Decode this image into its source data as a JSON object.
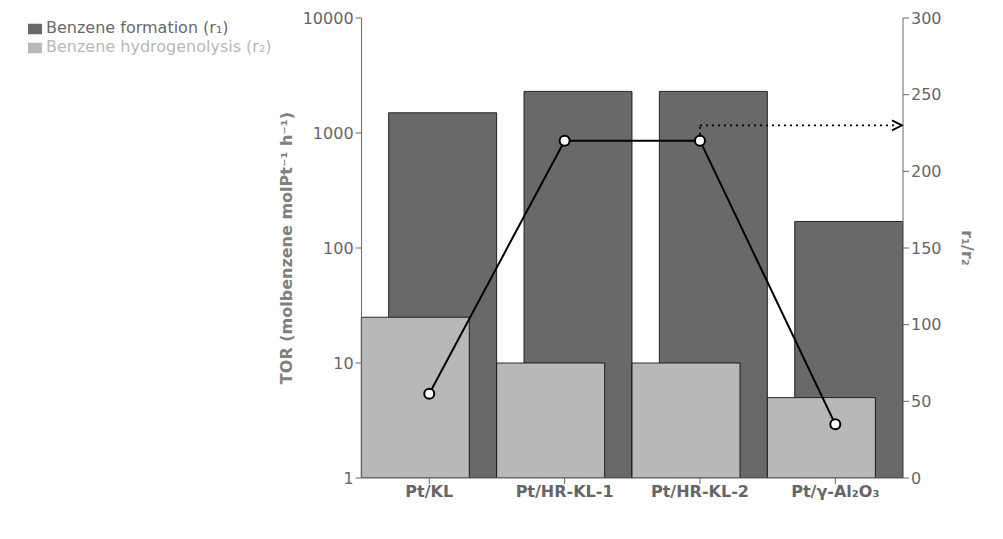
{
  "chart_data": {
    "type": "bar",
    "categories": [
      "Pt/KL",
      "Pt/HR-KL-1",
      "Pt/HR-KL-2",
      "Pt/γ-Al₂O₃"
    ],
    "series": [
      {
        "name": "Benzene formation (r₁)",
        "color": "#696969",
        "values": [
          1500,
          2300,
          2300,
          170
        ]
      },
      {
        "name": "Benzene hydrogenolysis (r₂)",
        "color": "#b8b8b8",
        "values": [
          25,
          10,
          10,
          5
        ]
      },
      {
        "type": "line",
        "color": "#000000",
        "marker": "circle",
        "axis": "y2",
        "values": [
          55,
          220,
          220,
          35
        ]
      }
    ],
    "ylabel": "TOR (molbenzene molPt⁻¹ h⁻¹)",
    "y2label": "r₁/r₂",
    "log": "y",
    "ylim": [
      1,
      10000
    ],
    "yticks": [
      1,
      10,
      100,
      1000,
      10000
    ],
    "y2lim": [
      0,
      300
    ],
    "y2ticks": [
      0,
      50,
      100,
      150,
      200,
      250,
      300
    ],
    "legend": "upper left",
    "grid": false,
    "annotations": [
      {
        "x": "Pt/HR-KL-2",
        "y": 230,
        "axis": "y2",
        "line_style": "dotted"
      }
    ]
  }
}
